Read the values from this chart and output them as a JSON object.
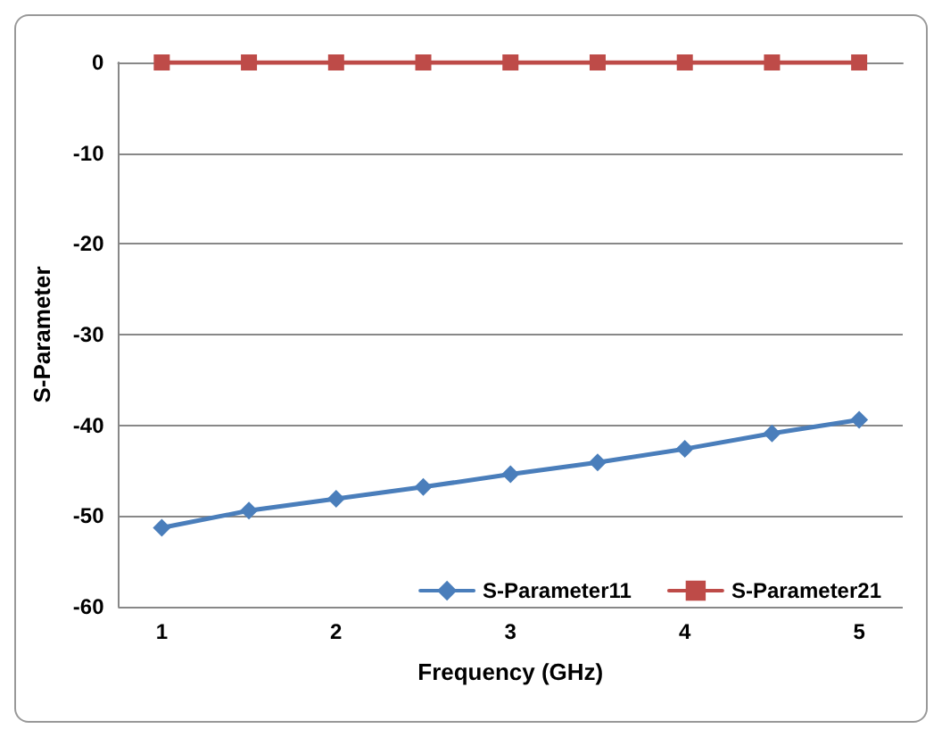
{
  "chart_data": {
    "type": "line",
    "xlabel": "Frequency (GHz)",
    "ylabel": "S-Parameter",
    "x": [
      1,
      1.5,
      2,
      2.5,
      3,
      3.5,
      4,
      4.5,
      5
    ],
    "series": [
      {
        "name": "S-Parameter11",
        "color": "#4a7ebb",
        "marker": "diamond",
        "values": [
          -51.3,
          -49.4,
          -48.1,
          -46.8,
          -45.4,
          -44.1,
          -42.6,
          -40.9,
          -39.4
        ]
      },
      {
        "name": "S-Parameter21",
        "color": "#be4b48",
        "marker": "square",
        "values": [
          0,
          0,
          0,
          0,
          0,
          0,
          0,
          0,
          0
        ]
      }
    ],
    "xlim": [
      0.75,
      5.25
    ],
    "xticks": [
      1,
      2,
      3,
      4,
      5
    ],
    "ylim": [
      -60,
      0
    ],
    "yticks": [
      -60,
      -50,
      -40,
      -30,
      -20,
      -10,
      0
    ],
    "grid": "y",
    "legend": "bottom right",
    "line_style": "solid"
  }
}
